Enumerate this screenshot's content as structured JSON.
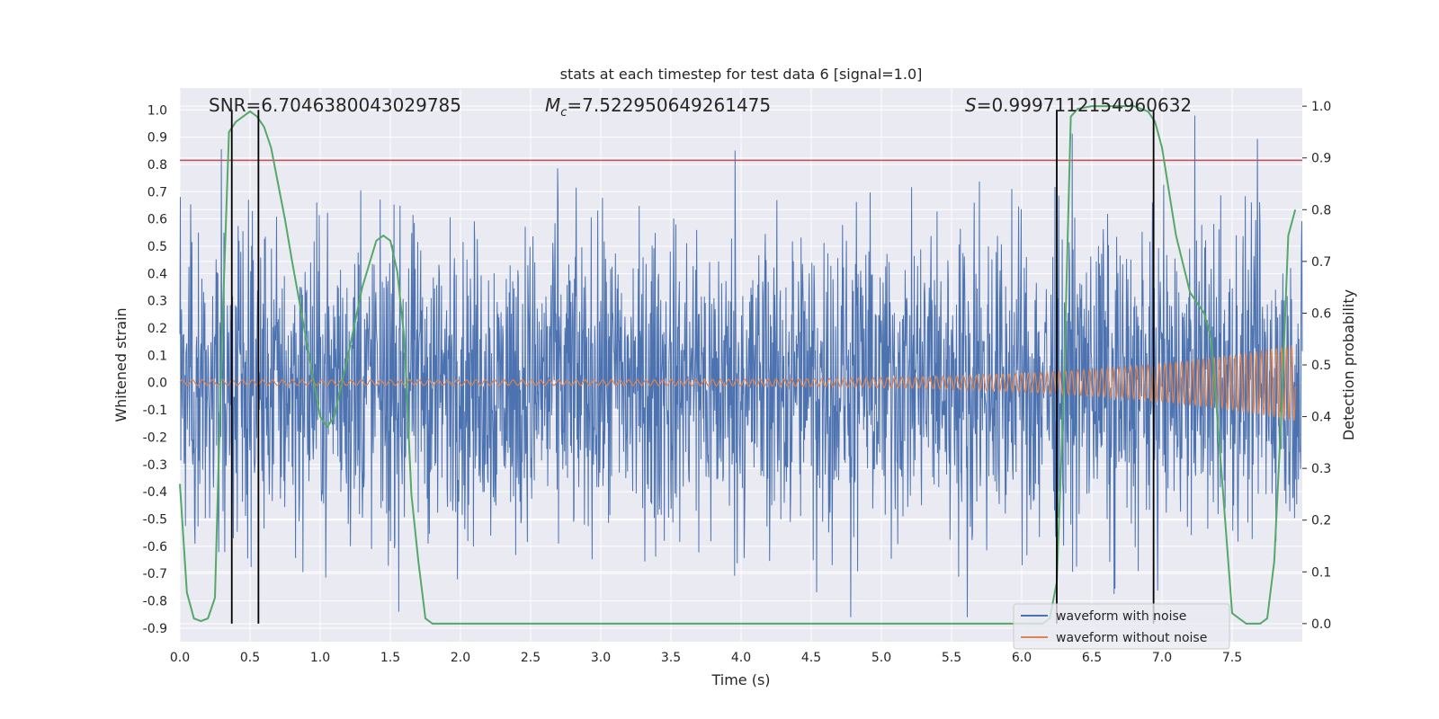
{
  "chart_data": {
    "type": "line",
    "title": "stats at each timestep for test data 6 [signal=1.0]",
    "xlabel": "Time (s)",
    "ylabel": "Whitened strain",
    "y2label": "Detection probability",
    "xlim": [
      0.0,
      8.0
    ],
    "ylim": [
      -0.95,
      1.08
    ],
    "y2lim": [
      -0.035,
      1.035
    ],
    "xticks": [
      "0.0",
      "0.5",
      "1.0",
      "1.5",
      "2.0",
      "2.5",
      "3.0",
      "3.5",
      "4.0",
      "4.5",
      "5.0",
      "5.5",
      "6.0",
      "6.5",
      "7.0",
      "7.5"
    ],
    "yticks": [
      "1.0",
      "0.9",
      "0.8",
      "0.7",
      "0.6",
      "0.5",
      "0.4",
      "0.3",
      "0.2",
      "0.1",
      "0.0",
      "-0.1",
      "-0.2",
      "-0.3",
      "-0.4",
      "-0.5",
      "-0.6",
      "-0.7",
      "-0.8",
      "-0.9"
    ],
    "y2ticks": [
      "1.0",
      "0.9",
      "0.8",
      "0.7",
      "0.6",
      "0.5",
      "0.4",
      "0.3",
      "0.2",
      "0.1",
      "0.0"
    ],
    "annotations": {
      "snr": "SNR=6.7046380043029785",
      "mc_symbol": "M",
      "mc_sub": "c",
      "mc_value": "=7.522950649261475",
      "s_symbol": "S",
      "s_value": "=0.9997112154960632"
    },
    "threshold_y": 0.815,
    "vlines_x": [
      0.37,
      0.56,
      6.25,
      6.94
    ],
    "series": [
      {
        "name": "waveform with noise",
        "color": "#4c72b0",
        "kind": "noise",
        "envelope_max": 1.0,
        "envelope_min": -0.86
      },
      {
        "name": "waveform without noise",
        "color": "#dd8452",
        "kind": "chirp",
        "amplitude_start": 0.01,
        "amplitude_end": 0.14
      }
    ],
    "probability": {
      "name": "detection probability",
      "color": "#55a868",
      "x": [
        0.0,
        0.05,
        0.1,
        0.15,
        0.2,
        0.25,
        0.3,
        0.35,
        0.4,
        0.45,
        0.5,
        0.55,
        0.6,
        0.65,
        0.7,
        0.75,
        0.8,
        0.9,
        1.0,
        1.05,
        1.1,
        1.2,
        1.3,
        1.4,
        1.45,
        1.5,
        1.55,
        1.6,
        1.65,
        1.7,
        1.75,
        1.8,
        2.0,
        3.0,
        4.0,
        5.0,
        6.0,
        6.15,
        6.2,
        6.25,
        6.3,
        6.35,
        6.4,
        6.5,
        6.6,
        6.7,
        6.8,
        6.9,
        6.95,
        7.0,
        7.1,
        7.2,
        7.3,
        7.35,
        7.4,
        7.5,
        7.6,
        7.7,
        7.75,
        7.8,
        7.85,
        7.9,
        7.95
      ],
      "y": [
        0.27,
        0.06,
        0.01,
        0.005,
        0.01,
        0.05,
        0.55,
        0.95,
        0.97,
        0.98,
        0.99,
        0.98,
        0.96,
        0.92,
        0.85,
        0.78,
        0.7,
        0.55,
        0.4,
        0.38,
        0.4,
        0.52,
        0.65,
        0.74,
        0.75,
        0.74,
        0.68,
        0.55,
        0.25,
        0.12,
        0.01,
        0.0,
        0.0,
        0.0,
        0.0,
        0.0,
        0.0,
        0.0,
        0.01,
        0.08,
        0.45,
        0.98,
        0.995,
        1.0,
        1.0,
        1.0,
        1.0,
        0.99,
        0.97,
        0.92,
        0.75,
        0.64,
        0.6,
        0.55,
        0.38,
        0.02,
        0.0,
        0.0,
        0.01,
        0.12,
        0.4,
        0.75,
        0.8
      ]
    },
    "legend_position": "lower-right"
  }
}
